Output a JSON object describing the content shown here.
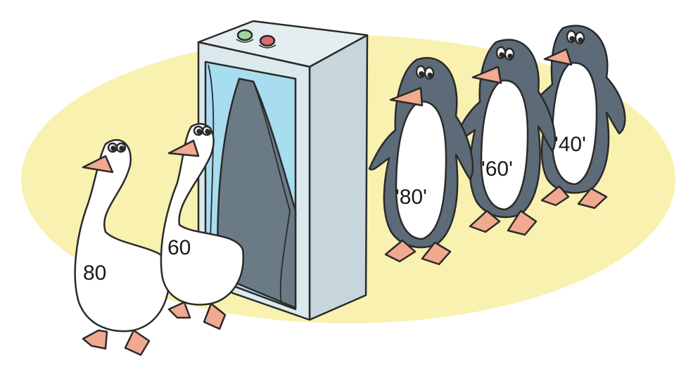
{
  "scene": {
    "geese": [
      {
        "number": "80"
      },
      {
        "number": "60"
      }
    ],
    "penguins": [
      {
        "number": "'80'"
      },
      {
        "number": "'60'"
      },
      {
        "number": "'40'"
      }
    ],
    "machine": {
      "buttons": [
        "green",
        "red"
      ]
    }
  },
  "colors": {
    "backdrop": "#f8f1b0",
    "machine_front": "#d9e6ea",
    "machine_side": "#c6d6dc",
    "curtain": "#a8dcef",
    "interior": "#6b7b86",
    "penguin_body": "#5d6a78",
    "goose_body": "#ffffff",
    "beak": "#f1a98f",
    "outline": "#2a2a2a"
  }
}
